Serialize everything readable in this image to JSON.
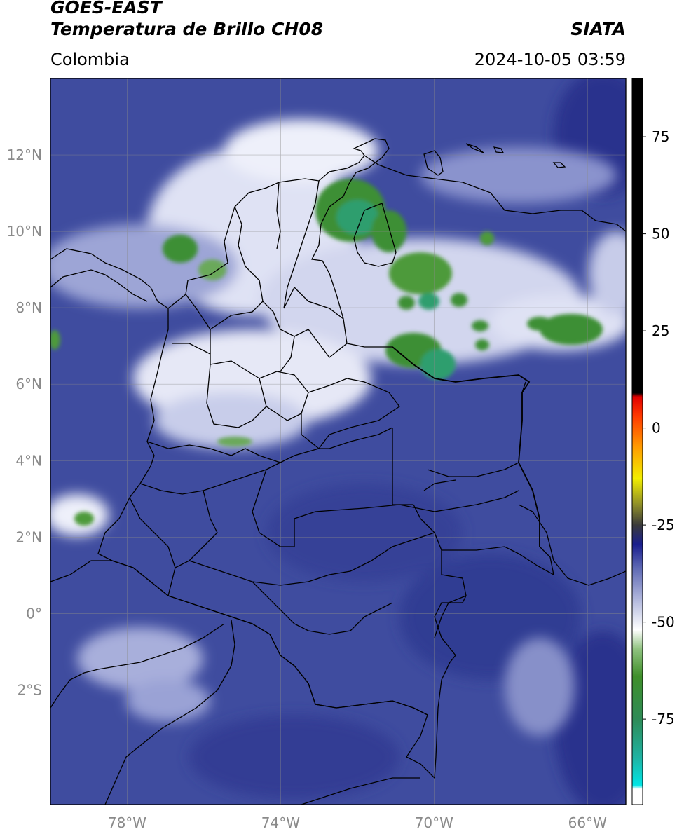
{
  "header": {
    "title": "GOES-EAST",
    "subtitle": "Temperatura de Brillo CH08",
    "brand": "SIATA",
    "region": "Colombia",
    "timestamp": "2024-10-05 03:59"
  },
  "map": {
    "lon_range": [
      -80,
      -65
    ],
    "lat_range": [
      -5,
      14
    ],
    "lat_ticks": [
      {
        "value": 12,
        "label": "12°N"
      },
      {
        "value": 10,
        "label": "10°N"
      },
      {
        "value": 8,
        "label": "8°N"
      },
      {
        "value": 6,
        "label": "6°N"
      },
      {
        "value": 4,
        "label": "4°N"
      },
      {
        "value": 2,
        "label": "2°N"
      },
      {
        "value": 0,
        "label": "0°"
      },
      {
        "value": -2,
        "label": "2°S"
      }
    ],
    "lon_ticks": [
      {
        "value": -78,
        "label": "78°W"
      },
      {
        "value": -74,
        "label": "74°W"
      },
      {
        "value": -70,
        "label": "70°W"
      },
      {
        "value": -66,
        "label": "66°W"
      }
    ],
    "grid": true,
    "background_color": "#3e4c9e"
  },
  "colorbar": {
    "range": [
      -97,
      90
    ],
    "ticks": [
      {
        "value": 75,
        "label": "75"
      },
      {
        "value": 50,
        "label": "50"
      },
      {
        "value": 25,
        "label": "25"
      },
      {
        "value": 0,
        "label": "0"
      },
      {
        "value": -25,
        "label": "-25"
      },
      {
        "value": -50,
        "label": "-50"
      },
      {
        "value": -75,
        "label": "-75"
      }
    ],
    "stops": [
      {
        "value": -97,
        "color": "#ffffff"
      },
      {
        "value": -93,
        "color": "#ffffff"
      },
      {
        "value": -92,
        "color": "#00e5e5"
      },
      {
        "value": -85,
        "color": "#1fb3a3"
      },
      {
        "value": -75,
        "color": "#2e8b57"
      },
      {
        "value": -64,
        "color": "#3f8f2a"
      },
      {
        "value": -57,
        "color": "#8fc27f"
      },
      {
        "value": -52,
        "color": "#ffffff"
      },
      {
        "value": -45,
        "color": "#b9bfe0"
      },
      {
        "value": -36,
        "color": "#5d68b3"
      },
      {
        "value": -30,
        "color": "#1a1f8e"
      },
      {
        "value": -25,
        "color": "#3a3a3a"
      },
      {
        "value": -20,
        "color": "#8a8a2a"
      },
      {
        "value": -13,
        "color": "#f2ee00"
      },
      {
        "value": -5,
        "color": "#ff9c00"
      },
      {
        "value": 3,
        "color": "#ff3a00"
      },
      {
        "value": 8,
        "color": "#e00000"
      },
      {
        "value": 9,
        "color": "#000000"
      },
      {
        "value": 90,
        "color": "#000000"
      }
    ]
  }
}
